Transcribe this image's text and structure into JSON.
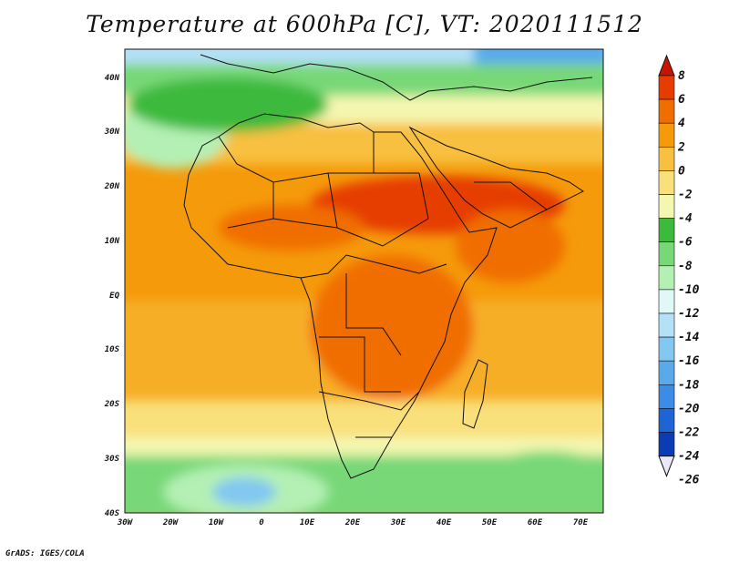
{
  "title": "Temperature at 600hPa [C], VT: 2020111512",
  "credit": "GrADS: IGES/COLA",
  "map": {
    "lat_labels": [
      "40N",
      "30N",
      "20N",
      "10N",
      "EQ",
      "10S",
      "20S",
      "30S",
      "40S"
    ],
    "lon_labels": [
      "30W",
      "20W",
      "10W",
      "0",
      "10E",
      "20E",
      "30E",
      "40E",
      "50E",
      "60E",
      "70E"
    ]
  },
  "colorbar": {
    "labels": [
      "8",
      "6",
      "4",
      "2",
      "0",
      "-2",
      "-4",
      "-6",
      "-8",
      "-10",
      "-12",
      "-14",
      "-16",
      "-18",
      "-20",
      "-22",
      "-24",
      "-26"
    ],
    "colors": [
      "#c81400",
      "#e63c00",
      "#f06e00",
      "#f59a0a",
      "#f8c040",
      "#f9e07a",
      "#f4f7b0",
      "#3cba3c",
      "#78d878",
      "#b4f0b4",
      "#e0f8f8",
      "#b4e0f8",
      "#82c8f0",
      "#5aaaeb",
      "#3c8ce6",
      "#1e64d2",
      "#0a3cb4",
      "#0a1e78"
    ]
  }
}
